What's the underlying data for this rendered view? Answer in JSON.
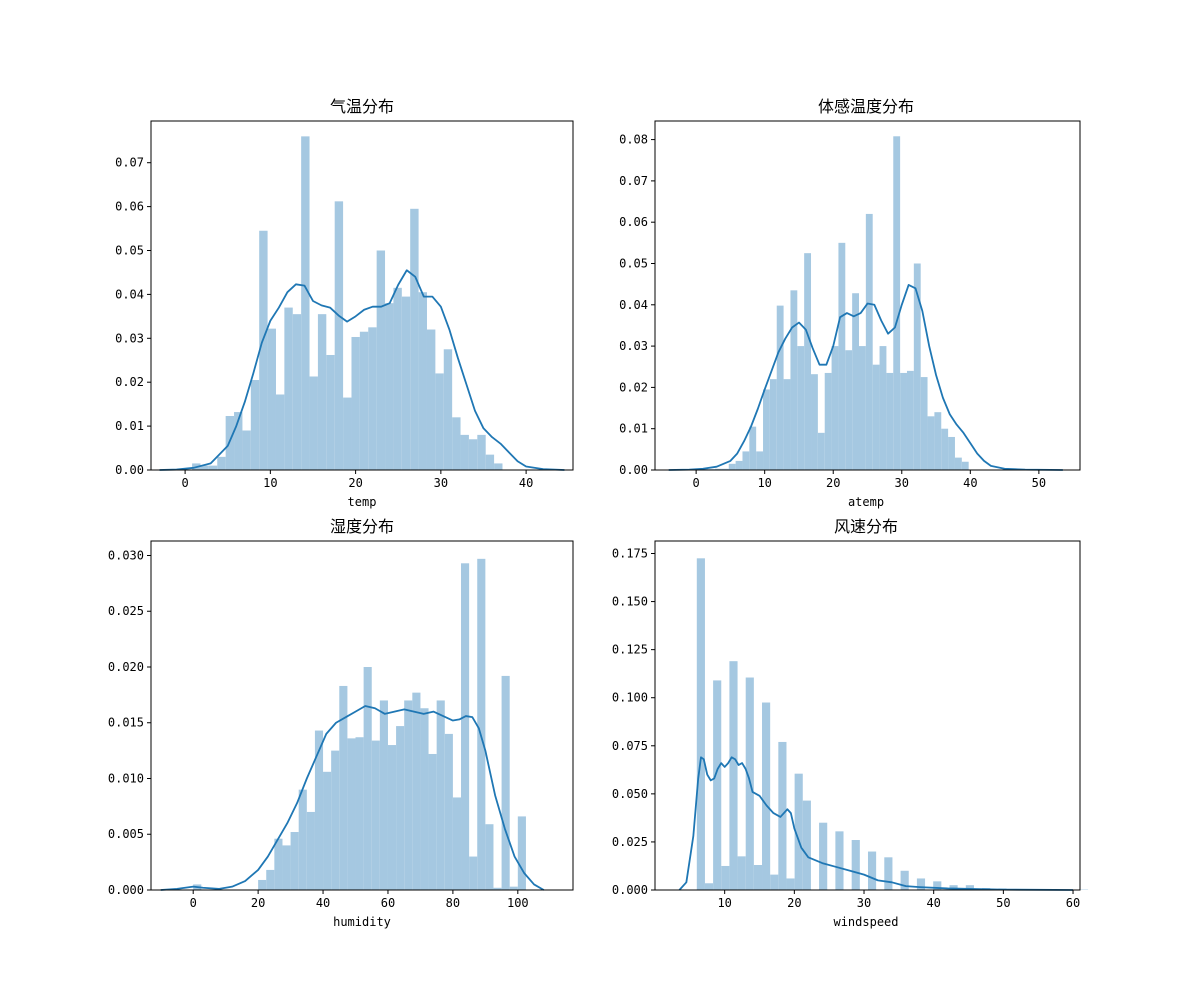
{
  "colors": {
    "bar": "#a5c8e1",
    "line": "#1f77b4",
    "axis": "#000000"
  },
  "chart_data": [
    {
      "type": "bar",
      "title": "气温分布",
      "xlabel": "temp",
      "xlim": [
        -4,
        45.5
      ],
      "ylim": [
        0,
        0.0795
      ],
      "xticks": [
        0,
        10,
        20,
        30,
        40
      ],
      "yticks": [
        0.0,
        0.01,
        0.02,
        0.03,
        0.04,
        0.05,
        0.06,
        0.07
      ],
      "ytick_labels": [
        "0.00",
        "0.01",
        "0.02",
        "0.03",
        "0.04",
        "0.05",
        "0.06",
        "0.07"
      ],
      "bin_start": 0.82,
      "bin_width": 0.984,
      "bar_heights": [
        0.0015,
        0.001,
        0.001,
        0.003,
        0.0123,
        0.0132,
        0.009,
        0.0205,
        0.0545,
        0.0322,
        0.0172,
        0.037,
        0.0355,
        0.076,
        0.0213,
        0.0355,
        0.0262,
        0.0612,
        0.0165,
        0.0303,
        0.0315,
        0.0325,
        0.05,
        0.038,
        0.0415,
        0.0395,
        0.0595,
        0.0405,
        0.032,
        0.022,
        0.0275,
        0.012,
        0.008,
        0.007,
        0.008,
        0.0035,
        0.0015
      ],
      "kde": [
        [
          -3,
          0
        ],
        [
          -1,
          0.0001
        ],
        [
          1,
          0.0005
        ],
        [
          3,
          0.0015
        ],
        [
          5,
          0.0055
        ],
        [
          6,
          0.01
        ],
        [
          7,
          0.0155
        ],
        [
          8,
          0.022
        ],
        [
          9,
          0.029
        ],
        [
          10,
          0.034
        ],
        [
          11,
          0.037
        ],
        [
          12,
          0.0405
        ],
        [
          13,
          0.0423
        ],
        [
          14,
          0.042
        ],
        [
          15,
          0.0385
        ],
        [
          16,
          0.0375
        ],
        [
          17,
          0.037
        ],
        [
          18,
          0.0352
        ],
        [
          19,
          0.0338
        ],
        [
          20,
          0.035
        ],
        [
          21,
          0.0365
        ],
        [
          22,
          0.0372
        ],
        [
          23,
          0.0372
        ],
        [
          24,
          0.038
        ],
        [
          25,
          0.0422
        ],
        [
          26,
          0.0455
        ],
        [
          27,
          0.044
        ],
        [
          28,
          0.0395
        ],
        [
          29,
          0.0395
        ],
        [
          30,
          0.0372
        ],
        [
          31,
          0.032
        ],
        [
          32,
          0.0255
        ],
        [
          33,
          0.0195
        ],
        [
          34,
          0.0135
        ],
        [
          35,
          0.0095
        ],
        [
          36,
          0.0075
        ],
        [
          37,
          0.006
        ],
        [
          38,
          0.004
        ],
        [
          39,
          0.002
        ],
        [
          40,
          0.0008
        ],
        [
          42,
          0.0002
        ],
        [
          44.5,
          0
        ]
      ]
    },
    {
      "type": "bar",
      "title": "体感温度分布",
      "xlabel": "atemp",
      "xlim": [
        -6,
        56
      ],
      "ylim": [
        0,
        0.0845
      ],
      "xticks": [
        0,
        10,
        20,
        30,
        40,
        50
      ],
      "yticks": [
        0.0,
        0.01,
        0.02,
        0.03,
        0.04,
        0.05,
        0.06,
        0.07,
        0.08
      ],
      "ytick_labels": [
        "0.00",
        "0.01",
        "0.02",
        "0.03",
        "0.04",
        "0.05",
        "0.06",
        "0.07",
        "0.08"
      ],
      "bin_start": 0.76,
      "bin_width": 1.0,
      "bar_heights": [
        0.0003,
        0.0002,
        0.0003,
        0.0003,
        0.0015,
        0.0022,
        0.0045,
        0.0105,
        0.0045,
        0.0195,
        0.022,
        0.0398,
        0.022,
        0.0435,
        0.03,
        0.0525,
        0.0232,
        0.009,
        0.0235,
        0.03,
        0.055,
        0.029,
        0.0428,
        0.03,
        0.062,
        0.0255,
        0.03,
        0.0235,
        0.0808,
        0.0235,
        0.024,
        0.05,
        0.0225,
        0.013,
        0.014,
        0.01,
        0.008,
        0.003,
        0.002
      ],
      "kde": [
        [
          -4,
          0
        ],
        [
          -1,
          0.0001
        ],
        [
          1,
          0.0003
        ],
        [
          3,
          0.0008
        ],
        [
          5,
          0.0022
        ],
        [
          6,
          0.004
        ],
        [
          7,
          0.007
        ],
        [
          8,
          0.0105
        ],
        [
          9,
          0.0148
        ],
        [
          10,
          0.0195
        ],
        [
          11,
          0.024
        ],
        [
          12,
          0.0285
        ],
        [
          13,
          0.0318
        ],
        [
          14,
          0.0345
        ],
        [
          15,
          0.0357
        ],
        [
          16,
          0.034
        ],
        [
          17,
          0.0295
        ],
        [
          18,
          0.0255
        ],
        [
          19,
          0.0255
        ],
        [
          20,
          0.03
        ],
        [
          21,
          0.037
        ],
        [
          22,
          0.038
        ],
        [
          23,
          0.0372
        ],
        [
          24,
          0.038
        ],
        [
          25,
          0.0403
        ],
        [
          26,
          0.04
        ],
        [
          27,
          0.0362
        ],
        [
          28,
          0.033
        ],
        [
          29,
          0.0345
        ],
        [
          30,
          0.04
        ],
        [
          31,
          0.0448
        ],
        [
          32,
          0.044
        ],
        [
          33,
          0.0385
        ],
        [
          34,
          0.03
        ],
        [
          35,
          0.023
        ],
        [
          36,
          0.0175
        ],
        [
          37,
          0.0135
        ],
        [
          38,
          0.011
        ],
        [
          39,
          0.009
        ],
        [
          40,
          0.0065
        ],
        [
          41,
          0.004
        ],
        [
          42,
          0.0022
        ],
        [
          43,
          0.001
        ],
        [
          45,
          0.0003
        ],
        [
          48,
          0.0001
        ],
        [
          53.5,
          0
        ]
      ]
    },
    {
      "type": "bar",
      "title": "湿度分布",
      "xlabel": "humidity",
      "xlim": [
        -13,
        117
      ],
      "ylim": [
        0,
        0.0313
      ],
      "xticks": [
        0,
        20,
        40,
        60,
        80,
        100
      ],
      "yticks": [
        0.0,
        0.005,
        0.01,
        0.015,
        0.02,
        0.025,
        0.03
      ],
      "ytick_labels": [
        "0.000",
        "0.005",
        "0.010",
        "0.015",
        "0.020",
        "0.025",
        "0.030"
      ],
      "bin_start": 0,
      "bin_width": 2.5,
      "bar_heights": [
        0.0005,
        0,
        0,
        0,
        0,
        0,
        0,
        0,
        0.0009,
        0.0018,
        0.0046,
        0.004,
        0.0052,
        0.009,
        0.007,
        0.0143,
        0.0106,
        0.0125,
        0.0183,
        0.0136,
        0.0137,
        0.02,
        0.0134,
        0.017,
        0.013,
        0.0147,
        0.017,
        0.0177,
        0.0163,
        0.0122,
        0.017,
        0.014,
        0.0083,
        0.0293,
        0.003,
        0.0297,
        0.0059,
        0.0002,
        0.0192,
        0.0003,
        0.0066
      ],
      "kde": [
        [
          -10,
          0
        ],
        [
          -5,
          0.0001
        ],
        [
          0,
          0.0003
        ],
        [
          3,
          0.0002
        ],
        [
          8,
          0.0001
        ],
        [
          12,
          0.0003
        ],
        [
          16,
          0.0008
        ],
        [
          20,
          0.0018
        ],
        [
          23,
          0.003
        ],
        [
          26,
          0.0045
        ],
        [
          29,
          0.006
        ],
        [
          32,
          0.0078
        ],
        [
          35,
          0.01
        ],
        [
          38,
          0.012
        ],
        [
          41,
          0.014
        ],
        [
          44,
          0.015
        ],
        [
          47,
          0.0155
        ],
        [
          50,
          0.016
        ],
        [
          53,
          0.0165
        ],
        [
          56,
          0.0163
        ],
        [
          59,
          0.0158
        ],
        [
          62,
          0.016
        ],
        [
          65,
          0.0162
        ],
        [
          68,
          0.016
        ],
        [
          71,
          0.0158
        ],
        [
          74,
          0.016
        ],
        [
          77,
          0.0156
        ],
        [
          80,
          0.0152
        ],
        [
          82,
          0.0153
        ],
        [
          84,
          0.0156
        ],
        [
          86,
          0.0155
        ],
        [
          88,
          0.0145
        ],
        [
          90,
          0.0125
        ],
        [
          93,
          0.0085
        ],
        [
          96,
          0.0055
        ],
        [
          99,
          0.003
        ],
        [
          102,
          0.0015
        ],
        [
          105,
          0.0005
        ],
        [
          108,
          0
        ]
      ]
    },
    {
      "type": "bar",
      "title": "风速分布",
      "xlabel": "windspeed",
      "xlim": [
        0,
        61
      ],
      "ylim": [
        0,
        0.1815
      ],
      "xticks": [
        10,
        20,
        30,
        40,
        50,
        60
      ],
      "yticks": [
        0.0,
        0.025,
        0.05,
        0.075,
        0.1,
        0.125,
        0.15,
        0.175
      ],
      "ytick_labels": [
        "0.000",
        "0.025",
        "0.050",
        "0.075",
        "0.100",
        "0.125",
        "0.150",
        "0.175"
      ],
      "bin_start": 6.0,
      "bin_width": 1.17,
      "bar_heights": [
        0.1725,
        0.0035,
        0.109,
        0.0125,
        0.119,
        0.0175,
        0.1105,
        0.013,
        0.0975,
        0.008,
        0.077,
        0.006,
        0.0605,
        0.0465,
        0,
        0.035,
        0,
        0.0305,
        0,
        0.026,
        0,
        0.02,
        0,
        0.017,
        0,
        0.01,
        0,
        0.006,
        0,
        0.0045,
        0,
        0.0025,
        0,
        0.0025,
        0,
        0.001,
        0,
        0.0008,
        0,
        0.0005,
        0,
        0.0003,
        0,
        0.0003,
        0,
        0.0002,
        0,
        0.0002
      ],
      "kde": [
        [
          3.5,
          0
        ],
        [
          4.5,
          0.004
        ],
        [
          5.5,
          0.028
        ],
        [
          6.2,
          0.058
        ],
        [
          6.6,
          0.069
        ],
        [
          7,
          0.068
        ],
        [
          7.5,
          0.06
        ],
        [
          8,
          0.057
        ],
        [
          8.5,
          0.058
        ],
        [
          9,
          0.063
        ],
        [
          9.5,
          0.066
        ],
        [
          10,
          0.064
        ],
        [
          10.5,
          0.066
        ],
        [
          11,
          0.069
        ],
        [
          11.5,
          0.068
        ],
        [
          12,
          0.065
        ],
        [
          12.5,
          0.066
        ],
        [
          13,
          0.063
        ],
        [
          13.5,
          0.058
        ],
        [
          14,
          0.051
        ],
        [
          15,
          0.049
        ],
        [
          16,
          0.044
        ],
        [
          17,
          0.04
        ],
        [
          18,
          0.038
        ],
        [
          19,
          0.042
        ],
        [
          19.5,
          0.04
        ],
        [
          20,
          0.032
        ],
        [
          21,
          0.022
        ],
        [
          22,
          0.017
        ],
        [
          24,
          0.014
        ],
        [
          26,
          0.012
        ],
        [
          28,
          0.01
        ],
        [
          30,
          0.008
        ],
        [
          32,
          0.005
        ],
        [
          34,
          0.004
        ],
        [
          36,
          0.002
        ],
        [
          38,
          0.0015
        ],
        [
          42,
          0.0008
        ],
        [
          50,
          0.0002
        ],
        [
          60,
          0
        ]
      ]
    }
  ]
}
